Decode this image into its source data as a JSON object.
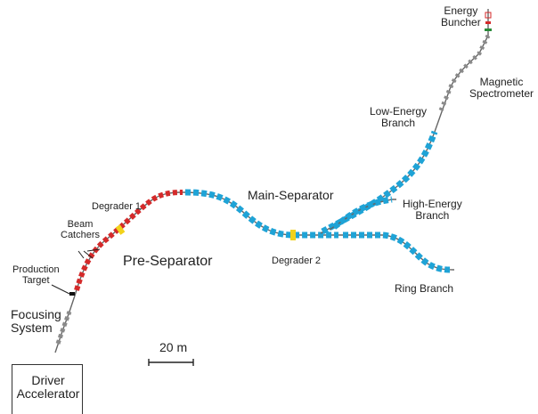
{
  "labels": {
    "energy_buncher": [
      "Energy",
      "Buncher"
    ],
    "magnetic_spectrometer": [
      "Magnetic",
      "Spectrometer"
    ],
    "low_energy_branch": [
      "Low-Energy",
      "Branch"
    ],
    "main_separator": "Main-Separator",
    "high_energy_branch": [
      "High-Energy",
      "Branch"
    ],
    "degrader_1": "Degrader 1",
    "beam_catchers": [
      "Beam",
      "Catchers"
    ],
    "pre_separator": "Pre-Separator",
    "degrader_2": "Degrader 2",
    "production_target": [
      "Production",
      "Target"
    ],
    "ring_branch": "Ring Branch",
    "focusing_system": [
      "Focusing",
      "System"
    ],
    "scale_bar": "20 m",
    "driver_accelerator": [
      "Driver",
      "Accelerator"
    ]
  },
  "colors": {
    "pre_separator_magnets": "#d42a2a",
    "main_separator_magnets": "#1fa3d6",
    "degrader": "#f2d21b",
    "beamline": "#666666",
    "gray_elements": "#8a8a8a",
    "buncher_marker": "#2a8a3a"
  }
}
